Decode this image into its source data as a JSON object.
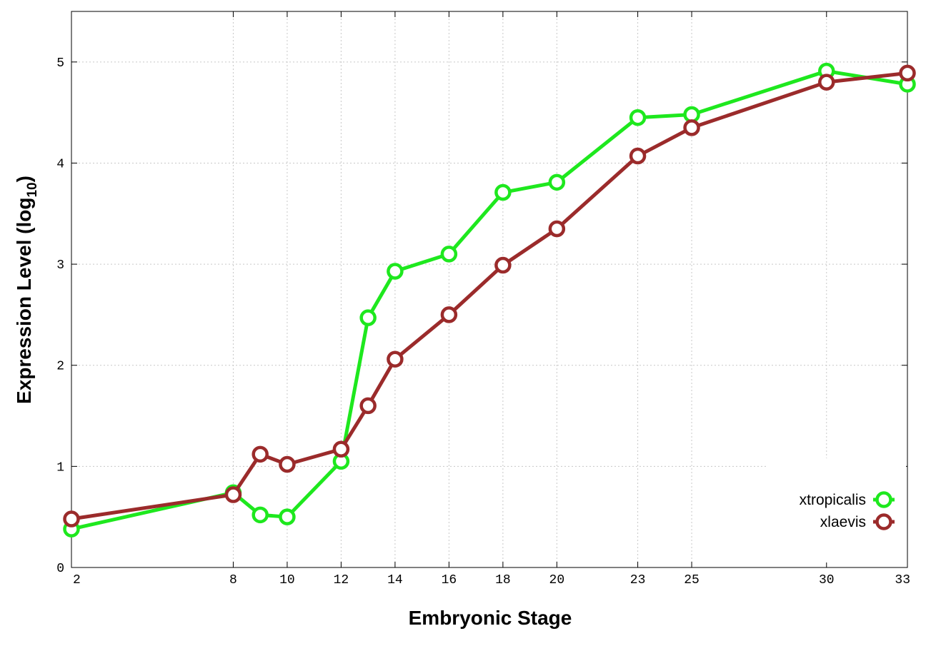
{
  "chart_data": {
    "type": "line",
    "xlabel": "Embryonic Stage",
    "ylabel": "Expression Level (log",
    "ylabel_sub": "10",
    "ylabel_close": ")",
    "x_ticks": [
      2,
      8,
      10,
      12,
      14,
      16,
      18,
      20,
      23,
      25,
      30,
      33
    ],
    "y_ticks": [
      0,
      1,
      2,
      3,
      4,
      5
    ],
    "xlim": [
      2,
      33
    ],
    "ylim": [
      0,
      5.5
    ],
    "grid": true,
    "legend_position": "bottom-right",
    "series": [
      {
        "name": "xtropicalis",
        "color": "#1ee81e",
        "x": [
          2,
          8,
          9,
          10,
          12,
          13,
          14,
          16,
          18,
          20,
          23,
          25,
          30,
          33
        ],
        "y": [
          0.38,
          0.74,
          0.52,
          0.5,
          1.05,
          2.47,
          2.93,
          3.1,
          3.71,
          3.81,
          4.45,
          4.48,
          4.91,
          4.78
        ]
      },
      {
        "name": "xlaevis",
        "color": "#9b2b2b",
        "x": [
          2,
          8,
          9,
          10,
          12,
          13,
          14,
          16,
          18,
          20,
          23,
          25,
          30,
          33
        ],
        "y": [
          0.48,
          0.72,
          1.12,
          1.02,
          1.17,
          1.6,
          2.06,
          2.5,
          2.99,
          3.35,
          4.07,
          4.35,
          4.8,
          4.89
        ]
      }
    ]
  }
}
